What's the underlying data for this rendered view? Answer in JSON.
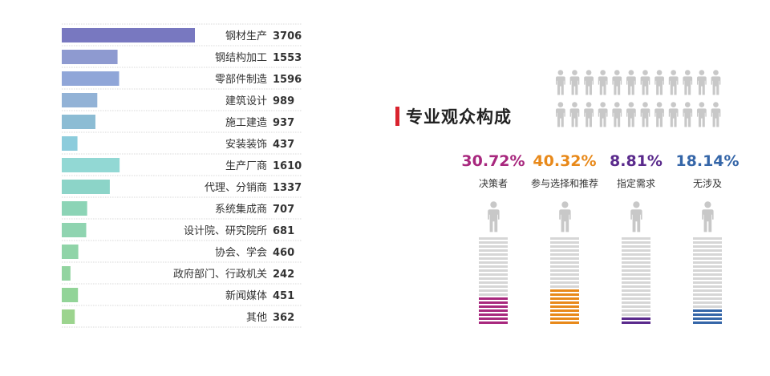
{
  "chart_data": [
    {
      "type": "bar",
      "orientation": "horizontal",
      "categories": [
        "钢材生产",
        "钢结构加工",
        "零部件制造",
        "建筑设计",
        "施工建造",
        "安装装饰",
        "生产厂商",
        "代理、分销商",
        "系统集成商",
        "设计院、研究院所",
        "协会、学会",
        "政府部门、行政机关",
        "新闻媒体",
        "其他"
      ],
      "values": [
        3706,
        1553,
        1596,
        989,
        937,
        437,
        1610,
        1337,
        707,
        681,
        460,
        242,
        451,
        362
      ],
      "value_labels": [
        "3706",
        "1553",
        "1596",
        "989",
        "937",
        "437",
        "1610",
        "1337",
        "707",
        "681",
        "460",
        "242",
        "451",
        "362"
      ],
      "colors": [
        "#7878c0",
        "#8e9ad0",
        "#90a6d8",
        "#92b2d6",
        "#8cbcd4",
        "#8cccdc",
        "#92d8d4",
        "#8cd4c8",
        "#8cd4b6",
        "#8fd4b0",
        "#90d4a8",
        "#92d4a0",
        "#92d498",
        "#9cd48e"
      ],
      "xlim": [
        0,
        3706
      ],
      "grid": false,
      "legend": "none"
    },
    {
      "type": "stacked-icon-bars",
      "title": "专业观众构成",
      "categories": [
        "决策者",
        "参与选择和推荐",
        "指定需求",
        "无涉及"
      ],
      "values": [
        30.72,
        40.32,
        8.81,
        18.14
      ],
      "value_labels": [
        "30.72%",
        "40.32%",
        "8.81%",
        "18.14%"
      ],
      "colors": [
        "#a8287e",
        "#e8891a",
        "#5a2a8c",
        "#3566a8"
      ],
      "scale_max": 100,
      "legend": "none"
    }
  ],
  "style": {
    "accent": "#d9232e",
    "bar_rule_color": "#d8d8d8",
    "figure_color": "#c8c8c8",
    "stripe_empty": "#d6d6d6"
  },
  "icons": {
    "person": "person-icon"
  }
}
